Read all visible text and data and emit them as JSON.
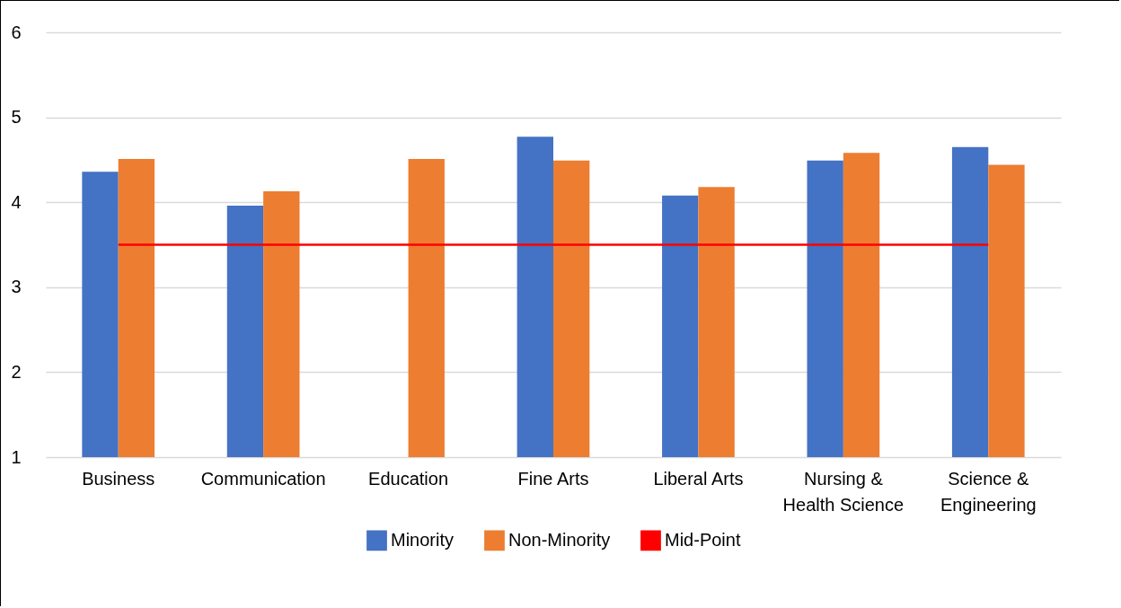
{
  "chart_data": {
    "type": "bar",
    "categories": [
      "Business",
      "Communication",
      "Education",
      "Fine Arts",
      "Liberal Arts",
      "Nursing & Health Science",
      "Science & Engineering"
    ],
    "series": [
      {
        "name": "Minority",
        "color": "#4472c4",
        "values": [
          4.36,
          3.96,
          null,
          4.77,
          4.08,
          4.49,
          4.65
        ]
      },
      {
        "name": "Non-Minority",
        "color": "#ed7d31",
        "values": [
          4.51,
          4.13,
          4.51,
          4.49,
          4.18,
          4.58,
          4.44
        ]
      },
      {
        "name": "Mid-Point",
        "type": "line",
        "color": "#ff0000",
        "values": [
          3.5,
          3.5,
          3.5,
          3.5,
          3.5,
          3.5,
          3.5
        ]
      }
    ],
    "ylim": [
      1,
      6
    ],
    "yticks": [
      1,
      2,
      3,
      4,
      5,
      6
    ],
    "grid": "y",
    "legend": "bottom"
  }
}
